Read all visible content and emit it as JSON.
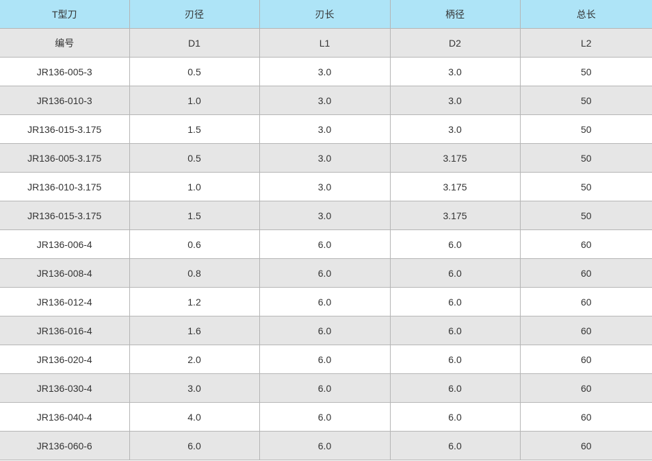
{
  "table": {
    "header": [
      "T型刀",
      "刃径",
      "刃长",
      "柄径",
      "总长"
    ],
    "subheader": [
      "编号",
      "D1",
      "L1",
      "D2",
      "L2"
    ],
    "rows": [
      [
        "JR136-005-3",
        "0.5",
        "3.0",
        "3.0",
        "50"
      ],
      [
        "JR136-010-3",
        "1.0",
        "3.0",
        "3.0",
        "50"
      ],
      [
        "JR136-015-3.175",
        "1.5",
        "3.0",
        "3.0",
        "50"
      ],
      [
        "JR136-005-3.175",
        "0.5",
        "3.0",
        "3.175",
        "50"
      ],
      [
        "JR136-010-3.175",
        "1.0",
        "3.0",
        "3.175",
        "50"
      ],
      [
        "JR136-015-3.175",
        "1.5",
        "3.0",
        "3.175",
        "50"
      ],
      [
        "JR136-006-4",
        "0.6",
        "6.0",
        "6.0",
        "60"
      ],
      [
        "JR136-008-4",
        "0.8",
        "6.0",
        "6.0",
        "60"
      ],
      [
        "JR136-012-4",
        "1.2",
        "6.0",
        "6.0",
        "60"
      ],
      [
        "JR136-016-4",
        "1.6",
        "6.0",
        "6.0",
        "60"
      ],
      [
        "JR136-020-4",
        "2.0",
        "6.0",
        "6.0",
        "60"
      ],
      [
        "JR136-030-4",
        "3.0",
        "6.0",
        "6.0",
        "60"
      ],
      [
        "JR136-040-4",
        "4.0",
        "6.0",
        "6.0",
        "60"
      ],
      [
        "JR136-060-6",
        "6.0",
        "6.0",
        "6.0",
        "60"
      ]
    ]
  }
}
